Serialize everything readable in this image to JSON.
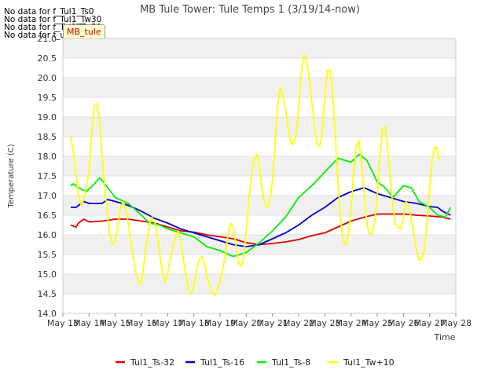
{
  "no_data_messages": [
    "No data for f_Tul1_Ts0",
    "No data for f_Tul1_Tw30",
    "No data for f_Tul1_Tw50",
    "No data for f_uMB_tule"
  ],
  "badge_label": "MB_tule",
  "chart_data": {
    "type": "line",
    "title": "MB Tule Tower: Tule Temps 1 (3/19/14-now)",
    "xlabel": "Time",
    "ylabel": "Temperature (C)",
    "x_ticks": [
      "May 13",
      "May 14",
      "May 15",
      "May 16",
      "May 17",
      "May 18",
      "May 19",
      "May 20",
      "May 21",
      "May 22",
      "May 23",
      "May 24",
      "May 25",
      "May 26",
      "May 27",
      "May 28"
    ],
    "xlim": [
      0,
      15
    ],
    "ylim": [
      14.0,
      21.0
    ],
    "y_ticks": [
      "14.0",
      "14.5",
      "15.0",
      "15.5",
      "16.0",
      "16.5",
      "17.0",
      "17.5",
      "18.0",
      "18.5",
      "19.0",
      "19.5",
      "20.0",
      "20.5",
      "21.0"
    ],
    "grid": true,
    "legend_position": "bottom",
    "series": [
      {
        "name": "Tul1_Ts-32",
        "color": "#dd0000",
        "points": [
          [
            0.3,
            16.25
          ],
          [
            0.5,
            16.2
          ],
          [
            0.6,
            16.3
          ],
          [
            0.8,
            16.4
          ],
          [
            1.0,
            16.33
          ],
          [
            1.5,
            16.35
          ],
          [
            2.0,
            16.4
          ],
          [
            2.5,
            16.4
          ],
          [
            3.0,
            16.35
          ],
          [
            3.5,
            16.3
          ],
          [
            4.0,
            16.2
          ],
          [
            4.5,
            16.1
          ],
          [
            5.0,
            16.07
          ],
          [
            5.5,
            16.0
          ],
          [
            6.0,
            15.95
          ],
          [
            6.5,
            15.9
          ],
          [
            7.0,
            15.8
          ],
          [
            7.5,
            15.75
          ],
          [
            8.0,
            15.78
          ],
          [
            8.5,
            15.82
          ],
          [
            9.0,
            15.88
          ],
          [
            9.5,
            15.98
          ],
          [
            10.0,
            16.05
          ],
          [
            10.5,
            16.2
          ],
          [
            11.0,
            16.35
          ],
          [
            11.5,
            16.45
          ],
          [
            12.0,
            16.53
          ],
          [
            12.5,
            16.53
          ],
          [
            13.0,
            16.53
          ],
          [
            13.5,
            16.5
          ],
          [
            14.0,
            16.48
          ],
          [
            14.5,
            16.45
          ],
          [
            14.8,
            16.4
          ]
        ]
      },
      {
        "name": "Tul1_Ts-16",
        "color": "#0000cc",
        "points": [
          [
            0.3,
            16.7
          ],
          [
            0.5,
            16.7
          ],
          [
            0.6,
            16.75
          ],
          [
            0.8,
            16.85
          ],
          [
            1.0,
            16.8
          ],
          [
            1.5,
            16.8
          ],
          [
            1.7,
            16.9
          ],
          [
            2.0,
            16.85
          ],
          [
            2.5,
            16.75
          ],
          [
            3.0,
            16.6
          ],
          [
            3.5,
            16.42
          ],
          [
            4.0,
            16.3
          ],
          [
            4.5,
            16.15
          ],
          [
            5.0,
            16.05
          ],
          [
            5.5,
            15.95
          ],
          [
            6.0,
            15.85
          ],
          [
            6.5,
            15.75
          ],
          [
            7.0,
            15.7
          ],
          [
            7.5,
            15.75
          ],
          [
            8.0,
            15.9
          ],
          [
            8.5,
            16.05
          ],
          [
            9.0,
            16.25
          ],
          [
            9.5,
            16.5
          ],
          [
            10.0,
            16.7
          ],
          [
            10.5,
            16.95
          ],
          [
            11.0,
            17.1
          ],
          [
            11.5,
            17.2
          ],
          [
            12.0,
            17.05
          ],
          [
            12.5,
            16.95
          ],
          [
            13.0,
            16.85
          ],
          [
            13.5,
            16.8
          ],
          [
            14.0,
            16.72
          ],
          [
            14.3,
            16.7
          ],
          [
            14.5,
            16.6
          ],
          [
            14.8,
            16.5
          ]
        ]
      },
      {
        "name": "Tul1_Ts-8",
        "color": "#00ee00",
        "points": [
          [
            0.3,
            17.25
          ],
          [
            0.4,
            17.3
          ],
          [
            0.6,
            17.2
          ],
          [
            0.9,
            17.1
          ],
          [
            1.2,
            17.3
          ],
          [
            1.4,
            17.45
          ],
          [
            1.6,
            17.3
          ],
          [
            2.0,
            16.95
          ],
          [
            2.5,
            16.8
          ],
          [
            3.0,
            16.5
          ],
          [
            3.3,
            16.3
          ],
          [
            3.7,
            16.25
          ],
          [
            4.0,
            16.15
          ],
          [
            4.5,
            16.05
          ],
          [
            5.0,
            15.95
          ],
          [
            5.5,
            15.7
          ],
          [
            6.0,
            15.6
          ],
          [
            6.5,
            15.45
          ],
          [
            7.0,
            15.55
          ],
          [
            7.5,
            15.8
          ],
          [
            8.0,
            16.1
          ],
          [
            8.5,
            16.45
          ],
          [
            9.0,
            16.95
          ],
          [
            9.5,
            17.25
          ],
          [
            10.0,
            17.6
          ],
          [
            10.5,
            17.95
          ],
          [
            11.0,
            17.85
          ],
          [
            11.3,
            18.05
          ],
          [
            11.6,
            17.9
          ],
          [
            12.0,
            17.35
          ],
          [
            12.3,
            17.2
          ],
          [
            12.6,
            16.95
          ],
          [
            13.0,
            17.25
          ],
          [
            13.3,
            17.2
          ],
          [
            13.6,
            16.85
          ],
          [
            14.0,
            16.7
          ],
          [
            14.3,
            16.5
          ],
          [
            14.6,
            16.45
          ],
          [
            14.8,
            16.7
          ]
        ]
      },
      {
        "name": "Tul1_Tw+10",
        "color": "#ffff00",
        "points": [
          [
            0.3,
            18.5
          ],
          [
            0.4,
            18.1
          ],
          [
            0.5,
            17.5
          ],
          [
            0.6,
            17.0
          ],
          [
            0.7,
            16.75
          ],
          [
            0.8,
            16.9
          ],
          [
            1.0,
            17.6
          ],
          [
            1.1,
            18.6
          ],
          [
            1.2,
            19.3
          ],
          [
            1.3,
            19.35
          ],
          [
            1.4,
            18.9
          ],
          [
            1.5,
            18.0
          ],
          [
            1.6,
            17.2
          ],
          [
            1.7,
            16.5
          ],
          [
            1.8,
            16.0
          ],
          [
            1.9,
            15.75
          ],
          [
            2.0,
            15.85
          ],
          [
            2.1,
            16.2
          ],
          [
            2.2,
            16.7
          ],
          [
            2.3,
            16.85
          ],
          [
            2.4,
            16.65
          ],
          [
            2.5,
            16.3
          ],
          [
            2.6,
            15.8
          ],
          [
            2.7,
            15.4
          ],
          [
            2.8,
            15.0
          ],
          [
            2.9,
            14.8
          ],
          [
            3.0,
            14.75
          ],
          [
            3.1,
            15.3
          ],
          [
            3.2,
            15.8
          ],
          [
            3.3,
            16.25
          ],
          [
            3.4,
            16.45
          ],
          [
            3.5,
            16.35
          ],
          [
            3.6,
            16.0
          ],
          [
            3.7,
            15.5
          ],
          [
            3.8,
            15.05
          ],
          [
            3.9,
            14.8
          ],
          [
            4.0,
            15.0
          ],
          [
            4.1,
            15.4
          ],
          [
            4.2,
            15.7
          ],
          [
            4.3,
            16.0
          ],
          [
            4.4,
            16.1
          ],
          [
            4.5,
            15.85
          ],
          [
            4.6,
            15.4
          ],
          [
            4.7,
            14.95
          ],
          [
            4.8,
            14.6
          ],
          [
            4.9,
            14.5
          ],
          [
            5.0,
            14.7
          ],
          [
            5.1,
            15.1
          ],
          [
            5.2,
            15.35
          ],
          [
            5.3,
            15.45
          ],
          [
            5.4,
            15.3
          ],
          [
            5.5,
            14.95
          ],
          [
            5.6,
            14.7
          ],
          [
            5.7,
            14.55
          ],
          [
            5.8,
            14.45
          ],
          [
            5.9,
            14.6
          ],
          [
            6.0,
            14.8
          ],
          [
            6.1,
            15.1
          ],
          [
            6.2,
            15.5
          ],
          [
            6.3,
            16.0
          ],
          [
            6.4,
            16.3
          ],
          [
            6.5,
            16.2
          ],
          [
            6.6,
            15.75
          ],
          [
            6.7,
            15.3
          ],
          [
            6.8,
            15.2
          ],
          [
            6.9,
            15.4
          ],
          [
            7.0,
            16.1
          ],
          [
            7.1,
            16.9
          ],
          [
            7.2,
            17.5
          ],
          [
            7.3,
            17.95
          ],
          [
            7.4,
            18.05
          ],
          [
            7.5,
            17.75
          ],
          [
            7.6,
            17.2
          ],
          [
            7.7,
            16.8
          ],
          [
            7.8,
            16.7
          ],
          [
            7.9,
            16.85
          ],
          [
            8.0,
            17.4
          ],
          [
            8.1,
            18.3
          ],
          [
            8.2,
            19.3
          ],
          [
            8.3,
            19.75
          ],
          [
            8.4,
            19.55
          ],
          [
            8.5,
            19.2
          ],
          [
            8.6,
            18.7
          ],
          [
            8.7,
            18.35
          ],
          [
            8.8,
            18.3
          ],
          [
            8.9,
            18.55
          ],
          [
            9.0,
            19.2
          ],
          [
            9.1,
            20.1
          ],
          [
            9.2,
            20.6
          ],
          [
            9.3,
            20.45
          ],
          [
            9.4,
            20.05
          ],
          [
            9.5,
            19.4
          ],
          [
            9.6,
            18.8
          ],
          [
            9.7,
            18.35
          ],
          [
            9.8,
            18.25
          ],
          [
            9.9,
            18.6
          ],
          [
            10.0,
            19.5
          ],
          [
            10.1,
            20.2
          ],
          [
            10.2,
            20.2
          ],
          [
            10.3,
            19.6
          ],
          [
            10.4,
            18.5
          ],
          [
            10.5,
            17.4
          ],
          [
            10.6,
            16.4
          ],
          [
            10.7,
            15.85
          ],
          [
            10.8,
            15.75
          ],
          [
            10.9,
            16.0
          ],
          [
            11.0,
            16.6
          ],
          [
            11.1,
            17.6
          ],
          [
            11.2,
            18.25
          ],
          [
            11.3,
            18.4
          ],
          [
            11.4,
            17.9
          ],
          [
            11.5,
            17.1
          ],
          [
            11.6,
            16.3
          ],
          [
            11.7,
            16.0
          ],
          [
            11.8,
            16.05
          ],
          [
            11.9,
            16.3
          ],
          [
            12.0,
            17.0
          ],
          [
            12.1,
            18.0
          ],
          [
            12.2,
            18.7
          ],
          [
            12.3,
            18.75
          ],
          [
            12.4,
            18.2
          ],
          [
            12.5,
            17.4
          ],
          [
            12.6,
            16.7
          ],
          [
            12.7,
            16.25
          ],
          [
            12.8,
            16.2
          ],
          [
            12.9,
            16.15
          ],
          [
            13.0,
            16.45
          ],
          [
            13.1,
            16.85
          ],
          [
            13.2,
            16.75
          ],
          [
            13.3,
            16.4
          ],
          [
            13.4,
            16.0
          ],
          [
            13.5,
            15.6
          ],
          [
            13.6,
            15.35
          ],
          [
            13.7,
            15.4
          ],
          [
            13.8,
            15.6
          ],
          [
            13.9,
            16.3
          ],
          [
            14.0,
            17.2
          ],
          [
            14.1,
            17.95
          ],
          [
            14.2,
            18.25
          ],
          [
            14.3,
            18.2
          ],
          [
            14.35,
            17.9
          ]
        ]
      }
    ]
  }
}
